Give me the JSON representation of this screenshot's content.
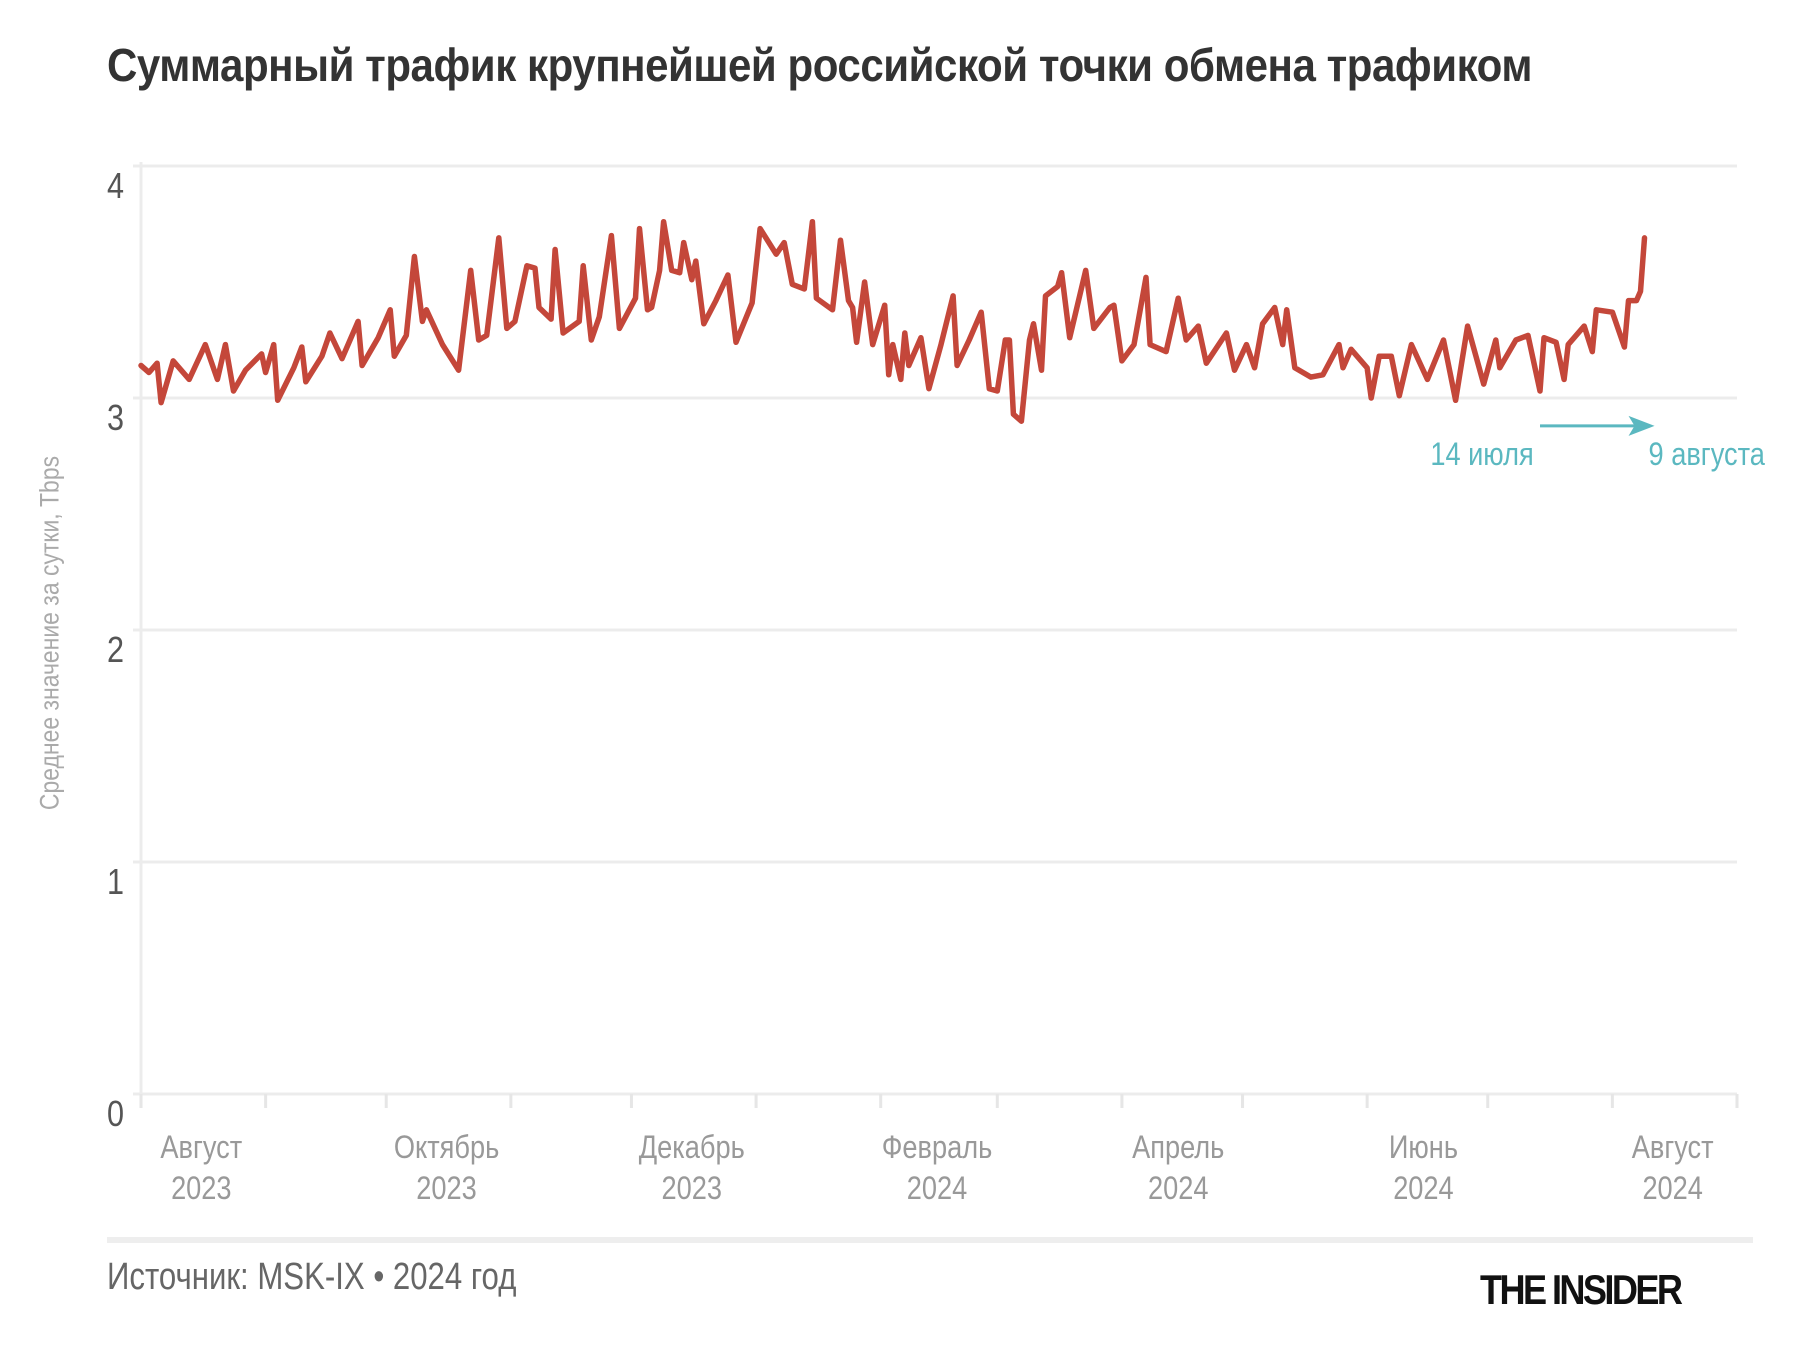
{
  "chart_data": {
    "type": "line",
    "title": "Суммарный трафик крупнейшей российской точки обмена трафиком",
    "ylabel": "Среднее значение за сутки, Tbps",
    "xlabel": "",
    "ylim": [
      0,
      4
    ],
    "yticks": [
      "0",
      "1",
      "2",
      "3",
      "4"
    ],
    "xlim": [
      "2023-08-01",
      "2024-09-01"
    ],
    "xtick_dates": [
      "2023-08-01",
      "2023-09-01",
      "2023-10-01",
      "2023-11-01",
      "2023-12-01",
      "2024-01-01",
      "2024-02-01",
      "2024-03-01",
      "2024-04-01",
      "2024-05-01",
      "2024-06-01",
      "2024-07-01",
      "2024-08-01",
      "2024-09-01"
    ],
    "xlabels": [
      {
        "month": "Август",
        "year": "2023",
        "at": "2023-08-16"
      },
      {
        "month": "Октябрь",
        "year": "2023",
        "at": "2023-10-16"
      },
      {
        "month": "Декабрь",
        "year": "2023",
        "at": "2023-12-16"
      },
      {
        "month": "Февраль",
        "year": "2024",
        "at": "2024-02-15"
      },
      {
        "month": "Апрель",
        "year": "2024",
        "at": "2024-04-15"
      },
      {
        "month": "Июнь",
        "year": "2024",
        "at": "2024-06-15"
      },
      {
        "month": "Август",
        "year": "2024",
        "at": "2024-08-16"
      }
    ],
    "grid": true,
    "line_color": "#c4473a",
    "annotation": {
      "from_label": "14 июля",
      "to_label": "9 августа",
      "from": "2024-07-14",
      "to": "2024-08-09",
      "y": 2.88,
      "color": "#5bb8c0"
    },
    "points": [
      [
        "2023-08-01",
        3.14
      ],
      [
        "2023-08-03",
        3.11
      ],
      [
        "2023-08-05",
        3.15
      ],
      [
        "2023-08-06",
        2.98
      ],
      [
        "2023-08-09",
        3.16
      ],
      [
        "2023-08-13",
        3.08
      ],
      [
        "2023-08-17",
        3.23
      ],
      [
        "2023-08-20",
        3.08
      ],
      [
        "2023-08-22",
        3.23
      ],
      [
        "2023-08-24",
        3.03
      ],
      [
        "2023-08-27",
        3.12
      ],
      [
        "2023-08-31",
        3.19
      ],
      [
        "2023-09-01",
        3.11
      ],
      [
        "2023-09-03",
        3.23
      ],
      [
        "2023-09-04",
        2.99
      ],
      [
        "2023-09-08",
        3.13
      ],
      [
        "2023-09-10",
        3.22
      ],
      [
        "2023-09-11",
        3.07
      ],
      [
        "2023-09-15",
        3.18
      ],
      [
        "2023-09-17",
        3.28
      ],
      [
        "2023-09-20",
        3.17
      ],
      [
        "2023-09-24",
        3.33
      ],
      [
        "2023-09-25",
        3.14
      ],
      [
        "2023-09-29",
        3.26
      ],
      [
        "2023-10-02",
        3.38
      ],
      [
        "2023-10-03",
        3.18
      ],
      [
        "2023-10-06",
        3.27
      ],
      [
        "2023-10-08",
        3.61
      ],
      [
        "2023-10-10",
        3.33
      ],
      [
        "2023-10-11",
        3.38
      ],
      [
        "2023-10-15",
        3.23
      ],
      [
        "2023-10-19",
        3.12
      ],
      [
        "2023-10-22",
        3.55
      ],
      [
        "2023-10-24",
        3.25
      ],
      [
        "2023-10-26",
        3.27
      ],
      [
        "2023-10-29",
        3.69
      ],
      [
        "2023-10-31",
        3.3
      ],
      [
        "2023-11-02",
        3.33
      ],
      [
        "2023-11-05",
        3.57
      ],
      [
        "2023-11-07",
        3.56
      ],
      [
        "2023-11-08",
        3.39
      ],
      [
        "2023-11-11",
        3.34
      ],
      [
        "2023-11-12",
        3.64
      ],
      [
        "2023-11-14",
        3.28
      ],
      [
        "2023-11-18",
        3.33
      ],
      [
        "2023-11-19",
        3.57
      ],
      [
        "2023-11-21",
        3.25
      ],
      [
        "2023-11-23",
        3.35
      ],
      [
        "2023-11-26",
        3.7
      ],
      [
        "2023-11-28",
        3.3
      ],
      [
        "2023-12-02",
        3.43
      ],
      [
        "2023-12-03",
        3.73
      ],
      [
        "2023-12-05",
        3.38
      ],
      [
        "2023-12-06",
        3.39
      ],
      [
        "2023-12-08",
        3.55
      ],
      [
        "2023-12-09",
        3.76
      ],
      [
        "2023-12-11",
        3.55
      ],
      [
        "2023-12-13",
        3.54
      ],
      [
        "2023-12-14",
        3.67
      ],
      [
        "2023-12-16",
        3.51
      ],
      [
        "2023-12-17",
        3.59
      ],
      [
        "2023-12-19",
        3.32
      ],
      [
        "2023-12-22",
        3.42
      ],
      [
        "2023-12-25",
        3.53
      ],
      [
        "2023-12-27",
        3.24
      ],
      [
        "2023-12-31",
        3.41
      ],
      [
        "2024-01-02",
        3.73
      ],
      [
        "2024-01-06",
        3.62
      ],
      [
        "2024-01-08",
        3.67
      ],
      [
        "2024-01-10",
        3.49
      ],
      [
        "2024-01-13",
        3.47
      ],
      [
        "2024-01-15",
        3.76
      ],
      [
        "2024-01-16",
        3.43
      ],
      [
        "2024-01-20",
        3.38
      ],
      [
        "2024-01-22",
        3.68
      ],
      [
        "2024-01-24",
        3.42
      ],
      [
        "2024-01-25",
        3.39
      ],
      [
        "2024-01-26",
        3.24
      ],
      [
        "2024-01-28",
        3.5
      ],
      [
        "2024-01-30",
        3.23
      ],
      [
        "2024-02-02",
        3.4
      ],
      [
        "2024-02-03",
        3.1
      ],
      [
        "2024-02-04",
        3.23
      ],
      [
        "2024-02-06",
        3.08
      ],
      [
        "2024-02-07",
        3.28
      ],
      [
        "2024-02-08",
        3.14
      ],
      [
        "2024-02-11",
        3.26
      ],
      [
        "2024-02-13",
        3.04
      ],
      [
        "2024-02-16",
        3.23
      ],
      [
        "2024-02-19",
        3.44
      ],
      [
        "2024-02-20",
        3.14
      ],
      [
        "2024-02-23",
        3.25
      ],
      [
        "2024-02-26",
        3.37
      ],
      [
        "2024-02-28",
        3.04
      ],
      [
        "2024-03-01",
        3.03
      ],
      [
        "2024-03-03",
        3.25
      ],
      [
        "2024-03-04",
        3.25
      ],
      [
        "2024-03-05",
        2.93
      ],
      [
        "2024-03-07",
        2.9
      ],
      [
        "2024-03-09",
        3.25
      ],
      [
        "2024-03-10",
        3.32
      ],
      [
        "2024-03-12",
        3.12
      ],
      [
        "2024-03-13",
        3.44
      ],
      [
        "2024-03-16",
        3.48
      ],
      [
        "2024-03-17",
        3.54
      ],
      [
        "2024-03-19",
        3.26
      ],
      [
        "2024-03-23",
        3.55
      ],
      [
        "2024-03-25",
        3.3
      ],
      [
        "2024-03-29",
        3.39
      ],
      [
        "2024-03-30",
        3.4
      ],
      [
        "2024-04-01",
        3.16
      ],
      [
        "2024-04-04",
        3.23
      ],
      [
        "2024-04-07",
        3.52
      ],
      [
        "2024-04-08",
        3.23
      ],
      [
        "2024-04-12",
        3.2
      ],
      [
        "2024-04-15",
        3.43
      ],
      [
        "2024-04-17",
        3.25
      ],
      [
        "2024-04-20",
        3.31
      ],
      [
        "2024-04-22",
        3.15
      ],
      [
        "2024-04-27",
        3.28
      ],
      [
        "2024-04-29",
        3.12
      ],
      [
        "2024-05-02",
        3.23
      ],
      [
        "2024-05-04",
        3.13
      ],
      [
        "2024-05-06",
        3.32
      ],
      [
        "2024-05-09",
        3.39
      ],
      [
        "2024-05-11",
        3.23
      ],
      [
        "2024-05-12",
        3.38
      ],
      [
        "2024-05-14",
        3.13
      ],
      [
        "2024-05-18",
        3.09
      ],
      [
        "2024-05-21",
        3.1
      ],
      [
        "2024-05-25",
        3.23
      ],
      [
        "2024-05-26",
        3.13
      ],
      [
        "2024-05-28",
        3.21
      ],
      [
        "2024-06-01",
        3.13
      ],
      [
        "2024-06-02",
        3.0
      ],
      [
        "2024-06-04",
        3.18
      ],
      [
        "2024-06-07",
        3.18
      ],
      [
        "2024-06-09",
        3.01
      ],
      [
        "2024-06-12",
        3.23
      ],
      [
        "2024-06-16",
        3.08
      ],
      [
        "2024-06-20",
        3.25
      ],
      [
        "2024-06-23",
        2.99
      ],
      [
        "2024-06-26",
        3.31
      ],
      [
        "2024-06-30",
        3.06
      ],
      [
        "2024-07-03",
        3.25
      ],
      [
        "2024-07-04",
        3.13
      ],
      [
        "2024-07-08",
        3.25
      ],
      [
        "2024-07-11",
        3.27
      ],
      [
        "2024-07-14",
        3.03
      ],
      [
        "2024-07-15",
        3.26
      ],
      [
        "2024-07-18",
        3.24
      ],
      [
        "2024-07-20",
        3.08
      ],
      [
        "2024-07-21",
        3.23
      ],
      [
        "2024-07-25",
        3.31
      ],
      [
        "2024-07-27",
        3.2
      ],
      [
        "2024-07-28",
        3.38
      ],
      [
        "2024-08-01",
        3.37
      ],
      [
        "2024-08-04",
        3.22
      ],
      [
        "2024-08-05",
        3.42
      ],
      [
        "2024-08-07",
        3.42
      ],
      [
        "2024-08-08",
        3.46
      ],
      [
        "2024-08-09",
        3.69
      ]
    ]
  },
  "footer": {
    "source": "Источник: MSK-IX • 2024 год",
    "logo": "THE INSIDER"
  }
}
